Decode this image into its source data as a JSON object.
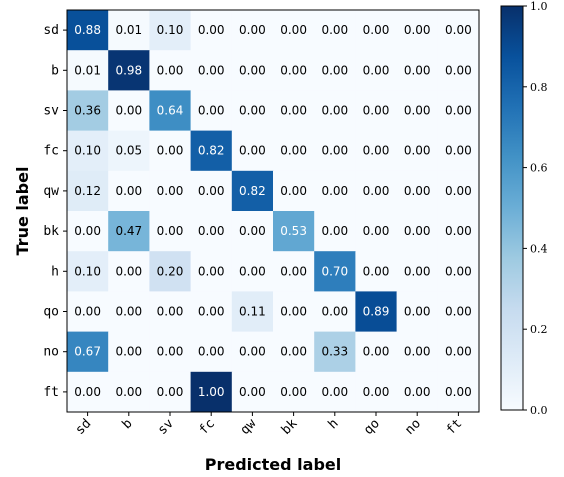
{
  "chart_data": {
    "type": "heatmap",
    "xlabel": "Predicted label",
    "ylabel": "True label",
    "row_labels": [
      "sd",
      "b",
      "sv",
      "fc",
      "qw",
      "bk",
      "h",
      "qo",
      "no",
      "ft"
    ],
    "col_labels": [
      "sd",
      "b",
      "sv",
      "fc",
      "qw",
      "bk",
      "h",
      "qo",
      "no",
      "ft"
    ],
    "values": [
      [
        0.88,
        0.01,
        0.1,
        0.0,
        0.0,
        0.0,
        0.0,
        0.0,
        0.0,
        0.0
      ],
      [
        0.01,
        0.98,
        0.0,
        0.0,
        0.0,
        0.0,
        0.0,
        0.0,
        0.0,
        0.0
      ],
      [
        0.36,
        0.0,
        0.64,
        0.0,
        0.0,
        0.0,
        0.0,
        0.0,
        0.0,
        0.0
      ],
      [
        0.1,
        0.05,
        0.0,
        0.82,
        0.0,
        0.0,
        0.0,
        0.0,
        0.0,
        0.0
      ],
      [
        0.12,
        0.0,
        0.0,
        0.0,
        0.82,
        0.0,
        0.0,
        0.0,
        0.0,
        0.0
      ],
      [
        0.0,
        0.47,
        0.0,
        0.0,
        0.0,
        0.53,
        0.0,
        0.0,
        0.0,
        0.0
      ],
      [
        0.1,
        0.0,
        0.2,
        0.0,
        0.0,
        0.0,
        0.7,
        0.0,
        0.0,
        0.0
      ],
      [
        0.0,
        0.0,
        0.0,
        0.0,
        0.11,
        0.0,
        0.0,
        0.89,
        0.0,
        0.0
      ],
      [
        0.67,
        0.0,
        0.0,
        0.0,
        0.0,
        0.0,
        0.33,
        0.0,
        0.0,
        0.0
      ],
      [
        0.0,
        0.0,
        0.0,
        1.0,
        0.0,
        0.0,
        0.0,
        0.0,
        0.0,
        0.0
      ]
    ],
    "colormap": "Blues",
    "value_range": [
      0.0,
      1.0
    ],
    "colorbar_ticks": [
      "0.0",
      "0.2",
      "0.4",
      "0.6",
      "0.8",
      "1.0"
    ],
    "grid": false,
    "colors": {
      "low": "#f7fbff",
      "high": "#08306b"
    }
  }
}
